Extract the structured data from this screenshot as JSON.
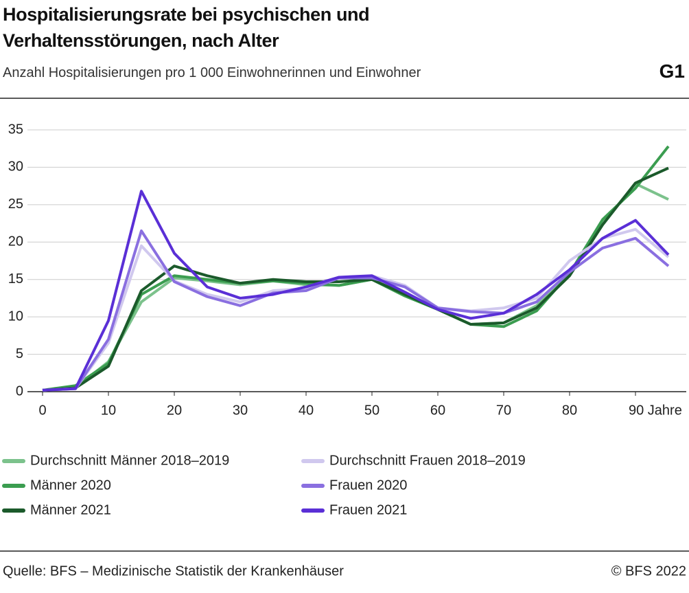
{
  "header": {
    "title": "Hospitalisierungsrate bei psychischen und Verhaltensstörungen, nach Alter",
    "subtitle": "Anzahl Hospitalisierungen pro 1 000 Einwohnerinnen und Einwohner",
    "code": "G1"
  },
  "chart_data": {
    "type": "line",
    "x": [
      0,
      5,
      10,
      15,
      20,
      25,
      30,
      35,
      40,
      45,
      50,
      55,
      60,
      65,
      70,
      75,
      80,
      85,
      90,
      95
    ],
    "xlim": [
      0,
      95
    ],
    "xticks": [
      0,
      10,
      20,
      30,
      40,
      50,
      60,
      70,
      80,
      {
        "value": 90,
        "label": "90 Jahre"
      }
    ],
    "ylim": [
      0,
      35
    ],
    "yticks": [
      0,
      5,
      10,
      15,
      20,
      25,
      30,
      35
    ],
    "grid": true,
    "series": [
      {
        "name": "Durchschnitt Männer 2018–2019",
        "color": "#7cc28c",
        "values": [
          0.2,
          0.5,
          4,
          12,
          15.2,
          14.8,
          14.3,
          14.8,
          14.3,
          14.2,
          15,
          12.8,
          11,
          9,
          9.2,
          11.5,
          15.5,
          22.5,
          27.8,
          25.7
        ]
      },
      {
        "name": "Männer 2020",
        "color": "#3b9d50",
        "values": [
          0.2,
          0.8,
          3.8,
          13,
          15.5,
          15,
          14.5,
          14.8,
          14.5,
          14.2,
          15,
          12.8,
          11,
          9,
          8.7,
          10.8,
          15.8,
          23,
          27.2,
          32.8
        ]
      },
      {
        "name": "Männer 2021",
        "color": "#1b5a2b",
        "values": [
          0.2,
          0.5,
          3.4,
          13.5,
          16.8,
          15.5,
          14.5,
          15,
          14.7,
          14.7,
          15,
          13,
          11,
          9,
          9.2,
          11.2,
          15.5,
          22.3,
          27.9,
          29.9
        ]
      },
      {
        "name": "Durchschnitt Frauen 2018–2019",
        "color": "#d0c8ee",
        "values": [
          0.2,
          0.4,
          6.5,
          19.5,
          14.8,
          13,
          12,
          13.5,
          13.8,
          15.2,
          15.5,
          14.2,
          11.2,
          10.8,
          11.2,
          12.5,
          17.5,
          20.5,
          21.7,
          18
        ]
      },
      {
        "name": "Frauen 2020",
        "color": "#8a6fe0",
        "values": [
          0.2,
          0.4,
          7,
          21.5,
          14.7,
          12.7,
          11.5,
          13.2,
          13.5,
          15.2,
          15.2,
          14,
          11.2,
          10.7,
          10.5,
          12,
          16,
          19.2,
          20.5,
          16.8
        ]
      },
      {
        "name": "Frauen 2021",
        "color": "#5a2fd6",
        "values": [
          0.2,
          0.4,
          9.5,
          26.8,
          18.5,
          14,
          12.5,
          13,
          14,
          15.3,
          15.5,
          13.3,
          11,
          9.8,
          10.5,
          13,
          16.3,
          20.5,
          22.9,
          18.3
        ]
      }
    ]
  },
  "footer": {
    "source": "Quelle: BFS – Medizinische Statistik der Krankenhäuser",
    "copyright": "© BFS 2022"
  }
}
